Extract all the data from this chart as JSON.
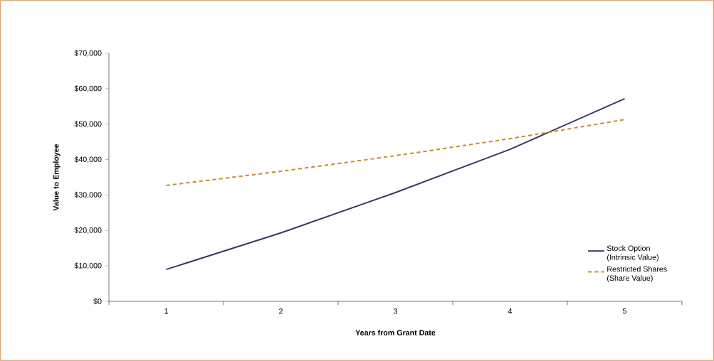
{
  "chart_data": {
    "type": "line",
    "xlabel": "Years from Grant Date",
    "ylabel": "Value to Employee",
    "categories": [
      "1",
      "2",
      "3",
      "4",
      "5"
    ],
    "series": [
      {
        "name": "Stock Option (Intrinsic Value)",
        "color": "#353a62",
        "line_style": "solid",
        "values": [
          9000,
          19300,
          30700,
          42900,
          57200
        ]
      },
      {
        "name": "Restricted Shares (Share Value)",
        "color": "#c09030",
        "line_style": "dashed",
        "values": [
          32700,
          36700,
          41100,
          45900,
          51300
        ]
      }
    ],
    "ylim": [
      0,
      70000
    ],
    "yticks": [
      {
        "value": 0,
        "label": "$0"
      },
      {
        "value": 10000,
        "label": "$10,000"
      },
      {
        "value": 20000,
        "label": "$20,000"
      },
      {
        "value": 30000,
        "label": "$30,000"
      },
      {
        "value": 40000,
        "label": "$40,000"
      },
      {
        "value": 50000,
        "label": "$50,000"
      },
      {
        "value": 60000,
        "label": "$60,000"
      },
      {
        "value": 70000,
        "label": "$70,000"
      }
    ],
    "grid": false,
    "legend": "bottom right",
    "marker": "none"
  }
}
